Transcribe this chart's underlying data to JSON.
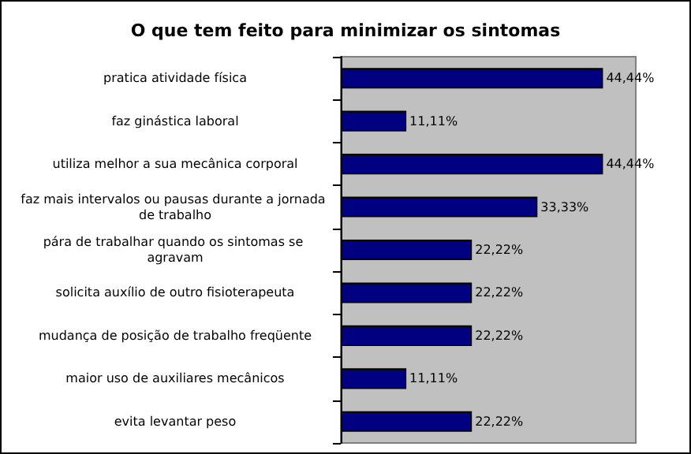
{
  "chart_data": {
    "type": "bar",
    "orientation": "horizontal",
    "title": "O que tem feito para minimizar os sintomas",
    "categories": [
      "pratica atividade física",
      "faz ginástica laboral",
      "utiliza melhor a sua mecânica corporal",
      "faz mais intervalos ou pausas durante a jornada de trabalho",
      "pára de trabalhar quando os sintomas se agravam",
      "solicita auxílio de outro fisioterapeuta",
      "mudança de posição de trabalho freqüente",
      "maior uso de auxiliares mecânicos",
      "evita levantar peso"
    ],
    "values": [
      44.44,
      11.11,
      44.44,
      33.33,
      22.22,
      22.22,
      22.22,
      11.11,
      22.22
    ],
    "value_labels": [
      "44,44%",
      "11,11%",
      "44,44%",
      "33,33%",
      "22,22%",
      "22,22%",
      "22,22%",
      "11,11%",
      "22,22%"
    ],
    "color": "#000080"
  }
}
